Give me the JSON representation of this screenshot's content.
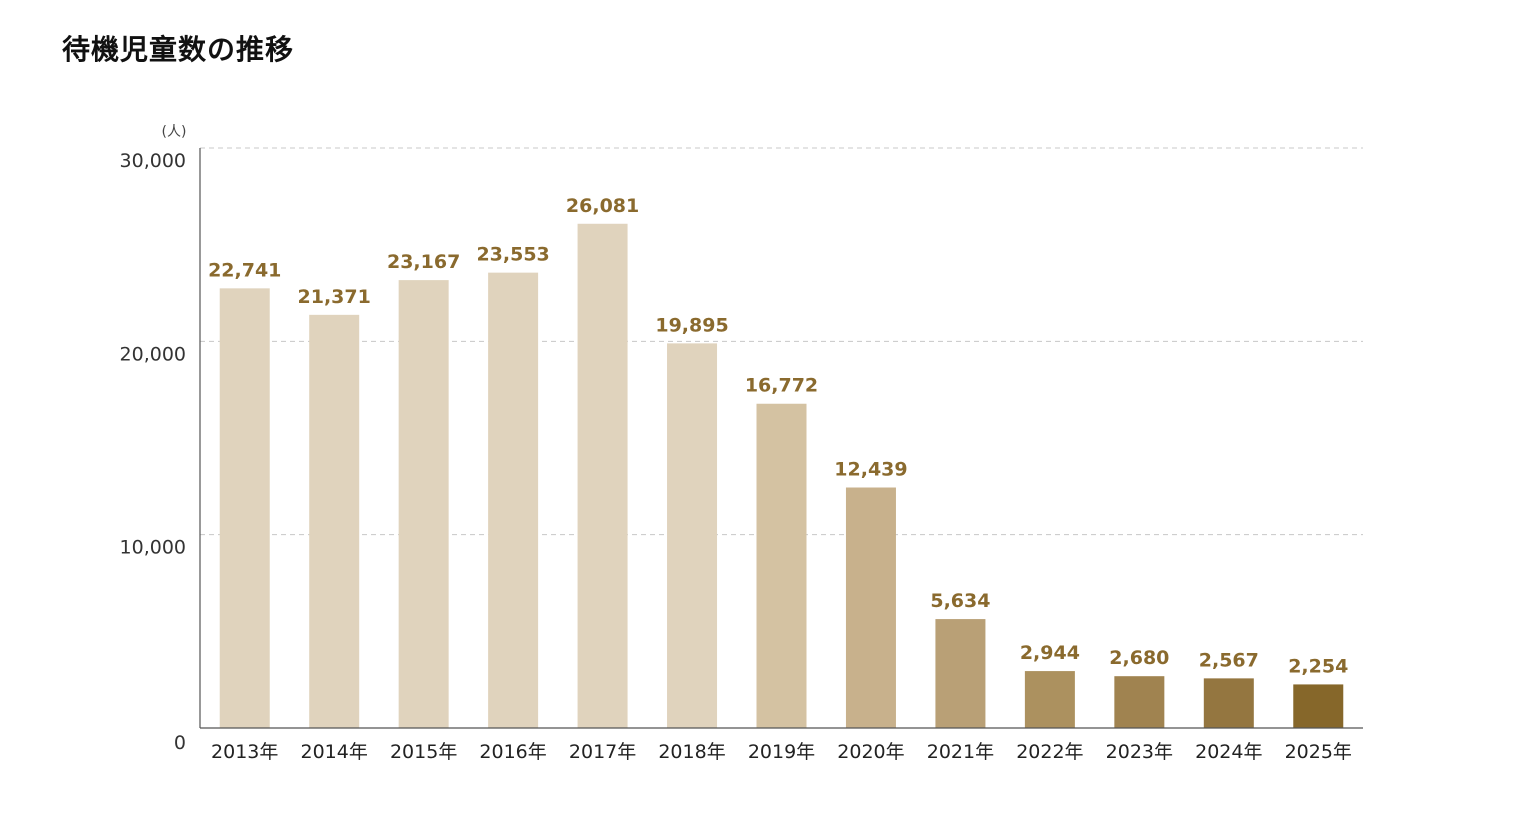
{
  "chart_data": {
    "type": "bar",
    "title": "待機児童数の推移",
    "y_unit": "(人)",
    "categories": [
      "2013年",
      "2014年",
      "2015年",
      "2016年",
      "2017年",
      "2018年",
      "2019年",
      "2020年",
      "2021年",
      "2022年",
      "2023年",
      "2024年",
      "2025年"
    ],
    "values": [
      22741,
      21371,
      23167,
      23553,
      26081,
      19895,
      16772,
      12439,
      5634,
      2944,
      2680,
      2567,
      2254
    ],
    "value_labels": [
      "22,741",
      "21,371",
      "23,167",
      "23,553",
      "26,081",
      "19,895",
      "16,772",
      "12,439",
      "5,634",
      "2,944",
      "2,680",
      "2,567",
      "2,254"
    ],
    "ylim": [
      0,
      30000
    ],
    "yticks": [
      0,
      10000,
      20000,
      30000
    ],
    "ytick_labels": [
      "0",
      "10,000",
      "20,000",
      "30,000"
    ],
    "grid": true,
    "bar_colors": [
      "#e0d3bd",
      "#e0d3bd",
      "#e0d3bd",
      "#e0d3bd",
      "#e0d3bd",
      "#e0d3bd",
      "#d4c2a2",
      "#c8b18c",
      "#b9a076",
      "#ac915f",
      "#a08350",
      "#947640",
      "#86672a"
    ],
    "value_label_color": "#8a6a2e"
  }
}
